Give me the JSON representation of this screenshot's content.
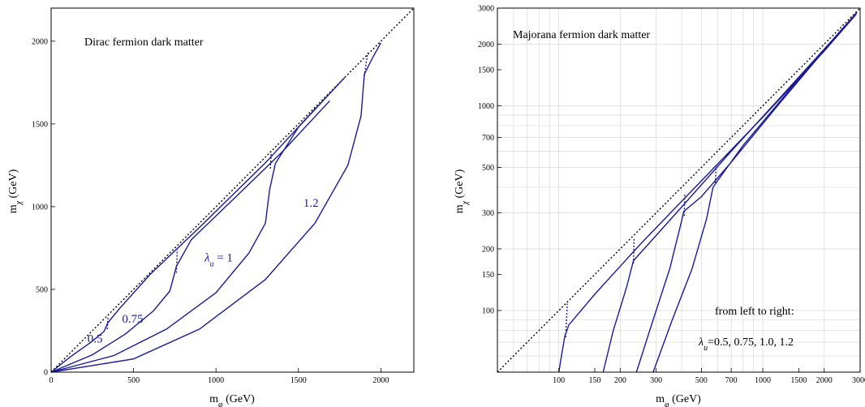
{
  "chart_data": [
    {
      "type": "line",
      "annotation": "Dirac fermion dark matter",
      "xlabel": "mφ (GeV)",
      "ylabel": "mχ (GeV)",
      "xlim": [
        0,
        2200
      ],
      "ylim": [
        0,
        2200
      ],
      "x_scale": "linear",
      "y_scale": "linear",
      "x_ticks": [
        0,
        500,
        1000,
        1500,
        2000
      ],
      "y_ticks": [
        0,
        500,
        1000,
        1500,
        2000
      ],
      "grid": false,
      "curve_labels": [
        {
          "text": "0.5",
          "x": 220,
          "y": 180
        },
        {
          "text": "0.75",
          "x": 430,
          "y": 300
        },
        {
          "text": "λu = 1",
          "x": 930,
          "y": 670
        },
        {
          "text": "1.2",
          "x": 1530,
          "y": 1000
        }
      ],
      "series": [
        {
          "values": [
            [
              0,
              0
            ],
            [
              120,
              95
            ],
            [
              240,
              180
            ],
            [
              320,
              245
            ],
            [
              345,
              300
            ],
            [
              420,
              390
            ],
            [
              600,
              590
            ],
            [
              900,
              875
            ],
            [
              1300,
              1265
            ],
            [
              1610,
              1600
            ]
          ],
          "dashed": [
            [
              340,
              260
            ],
            [
              345,
              330
            ]
          ]
        },
        {
          "values": [
            [
              0,
              0
            ],
            [
              250,
              105
            ],
            [
              450,
              230
            ],
            [
              620,
              370
            ],
            [
              720,
              490
            ],
            [
              760,
              640
            ],
            [
              850,
              800
            ],
            [
              1100,
              1040
            ],
            [
              1400,
              1330
            ],
            [
              1690,
              1640
            ]
          ],
          "dashed": [
            [
              760,
              600
            ],
            [
              765,
              740
            ]
          ]
        },
        {
          "values": [
            [
              0,
              0
            ],
            [
              380,
              100
            ],
            [
              700,
              260
            ],
            [
              1000,
              480
            ],
            [
              1200,
              720
            ],
            [
              1300,
              900
            ],
            [
              1325,
              1100
            ],
            [
              1360,
              1260
            ],
            [
              1500,
              1480
            ],
            [
              1780,
              1780
            ]
          ],
          "dashed": [
            [
              1330,
              1230
            ],
            [
              1335,
              1330
            ]
          ]
        },
        {
          "values": [
            [
              0,
              0
            ],
            [
              500,
              80
            ],
            [
              900,
              260
            ],
            [
              1300,
              560
            ],
            [
              1600,
              900
            ],
            [
              1800,
              1250
            ],
            [
              1880,
              1550
            ],
            [
              1900,
              1800
            ],
            [
              1950,
              1900
            ],
            [
              2000,
              1990
            ]
          ],
          "dashed": [
            [
              1900,
              1790
            ],
            [
              1920,
              1930
            ]
          ]
        }
      ]
    },
    {
      "type": "line",
      "annotation": "Majorana fermion dark matter",
      "legend_text_1": "from left to right:",
      "legend_text_2": "λu=0.5, 0.75, 1.0, 1.2",
      "xlabel": "mφ (GeV)",
      "ylabel": "mχ (GeV)",
      "xlim": [
        50,
        3000
      ],
      "ylim": [
        50,
        3000
      ],
      "x_scale": "log",
      "y_scale": "log",
      "x_ticks": [
        100,
        150,
        200,
        300,
        500,
        700,
        1000,
        1500,
        2000,
        3000
      ],
      "x_tick_labels": [
        "100",
        "150",
        "200",
        "300",
        "500",
        "700",
        "1000",
        "1500",
        "2000",
        "3000"
      ],
      "y_ticks": [
        100,
        150,
        200,
        300,
        500,
        700,
        1000,
        1500,
        2000,
        3000
      ],
      "y_tick_labels": [
        "100",
        "150",
        "200",
        "300",
        "500",
        "700",
        "1000",
        "1500",
        "2000",
        "3000"
      ],
      "grid": true,
      "series": [
        {
          "values": [
            [
              100,
              50
            ],
            [
              103,
              60
            ],
            [
              107,
              75
            ],
            [
              112,
              85
            ],
            [
              150,
              120
            ],
            [
              250,
              210
            ],
            [
              500,
              430
            ],
            [
              1000,
              880
            ],
            [
              2000,
              1850
            ],
            [
              2870,
              2800
            ]
          ],
          "dashed": [
            [
              108,
              74
            ],
            [
              110,
              108
            ]
          ]
        },
        {
          "values": [
            [
              165,
              50
            ],
            [
              185,
              80
            ],
            [
              215,
              130
            ],
            [
              232,
              175
            ],
            [
              250,
              190
            ],
            [
              400,
              320
            ],
            [
              700,
              600
            ],
            [
              1200,
              1080
            ],
            [
              2200,
              2100
            ],
            [
              2870,
              2820
            ]
          ],
          "dashed": [
            [
              232,
              170
            ],
            [
              234,
              225
            ]
          ]
        },
        {
          "values": [
            [
              240,
              50
            ],
            [
              290,
              90
            ],
            [
              350,
              160
            ],
            [
              395,
              260
            ],
            [
              410,
              305
            ],
            [
              500,
              360
            ],
            [
              700,
              530
            ],
            [
              1200,
              1020
            ],
            [
              2300,
              2200
            ],
            [
              2880,
              2840
            ]
          ],
          "dashed": [
            [
              412,
              290
            ],
            [
              414,
              375
            ]
          ]
        },
        {
          "values": [
            [
              290,
              50
            ],
            [
              360,
              90
            ],
            [
              450,
              160
            ],
            [
              530,
              280
            ],
            [
              570,
              400
            ],
            [
              600,
              430
            ],
            [
              800,
              640
            ],
            [
              1300,
              1140
            ],
            [
              2400,
              2320
            ],
            [
              2900,
              2860
            ]
          ],
          "dashed": [
            [
              585,
              420
            ],
            [
              590,
              510
            ]
          ]
        }
      ]
    }
  ]
}
